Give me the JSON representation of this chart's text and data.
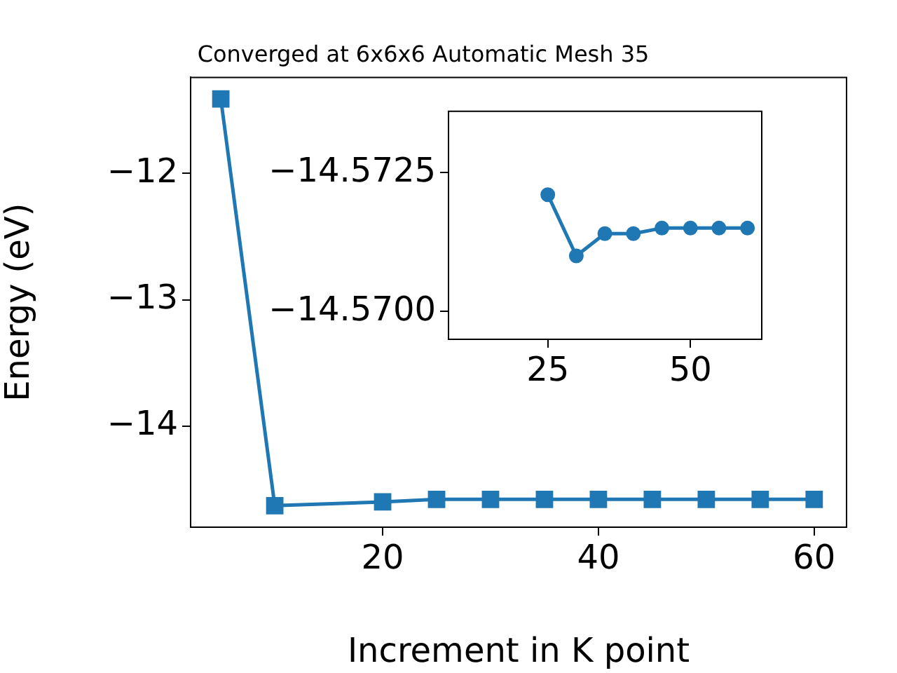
{
  "chart_data": [
    {
      "type": "line",
      "title": "Converged at 6x6x6 Automatic Mesh 35",
      "xlabel": "Increment in K point",
      "ylabel": "Energy (eV)",
      "x": [
        5,
        10,
        20,
        25,
        30,
        35,
        40,
        45,
        50,
        55,
        60
      ],
      "series": [
        {
          "color": "#1f77b4",
          "values": [
            -11.41,
            -14.63,
            -14.6,
            -14.58,
            -14.58,
            -14.58,
            -14.58,
            -14.58,
            -14.58,
            -14.58,
            -14.58
          ]
        }
      ],
      "xlim": [
        2.2,
        63
      ],
      "xticks": [
        20,
        40,
        60
      ],
      "ylim": [
        -14.8,
        -11.24
      ],
      "yticks": [
        {
          "value": -14,
          "label": "−14"
        },
        {
          "value": -13,
          "label": "−13"
        },
        {
          "value": -12,
          "label": "−12"
        }
      ],
      "marker": "square",
      "grid": false,
      "legend": false
    },
    {
      "type": "line",
      "x": [
        25,
        30,
        35,
        40,
        45,
        50,
        55,
        60
      ],
      "series": [
        {
          "color": "#1f77b4",
          "values": [
            -14.5721,
            -14.571,
            -14.5714,
            -14.5714,
            -14.5715,
            -14.5715,
            -14.5715,
            -14.5715
          ]
        }
      ],
      "xlim": [
        7.6,
        62.5
      ],
      "xticks": [
        25,
        50
      ],
      "ylim": [
        -14.5695,
        -14.5736
      ],
      "yticks": [
        {
          "value": -14.57,
          "label": "−14.5700"
        },
        {
          "value": -14.5725,
          "label": "−14.5725"
        }
      ],
      "marker": "circle",
      "grid": false,
      "legend": false
    }
  ]
}
